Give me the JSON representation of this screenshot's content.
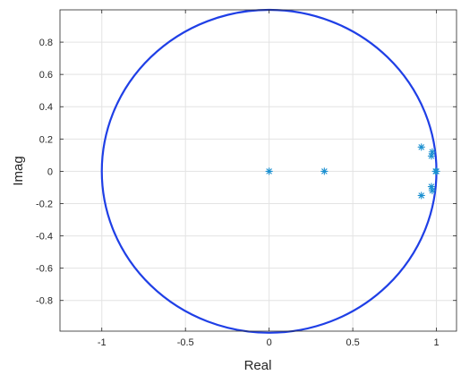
{
  "chart_data": {
    "type": "scatter",
    "title": "",
    "xlabel": "Real",
    "ylabel": "Imag",
    "xlim": [
      -1.25,
      1.12
    ],
    "ylim": [
      -0.99,
      1.0
    ],
    "grid": true,
    "xticks": [
      -1,
      -0.5,
      0,
      0.5,
      1
    ],
    "xtick_labels": [
      "-1",
      "-0.5",
      "0",
      "0.5",
      "1"
    ],
    "yticks": [
      -0.8,
      -0.6,
      -0.4,
      -0.2,
      0,
      0.2,
      0.4,
      0.6,
      0.8
    ],
    "ytick_labels": [
      "-0.8",
      "-0.6",
      "-0.4",
      "-0.2",
      "0",
      "0.2",
      "0.4",
      "0.6",
      "0.8"
    ],
    "unit_circle": {
      "center": [
        0,
        0
      ],
      "radius": 1,
      "color": "#1f3fe6"
    },
    "marker": "*",
    "marker_color": "#1a8fd0",
    "points": [
      {
        "x": 0.0,
        "y": 0.0
      },
      {
        "x": 0.33,
        "y": 0.0
      },
      {
        "x": 0.91,
        "y": 0.15
      },
      {
        "x": 0.91,
        "y": -0.15
      },
      {
        "x": 0.975,
        "y": 0.12
      },
      {
        "x": 0.975,
        "y": -0.12
      },
      {
        "x": 0.97,
        "y": 0.095
      },
      {
        "x": 0.97,
        "y": -0.095
      },
      {
        "x": 0.995,
        "y": 0.0
      },
      {
        "x": 1.0,
        "y": 0.0
      }
    ]
  }
}
